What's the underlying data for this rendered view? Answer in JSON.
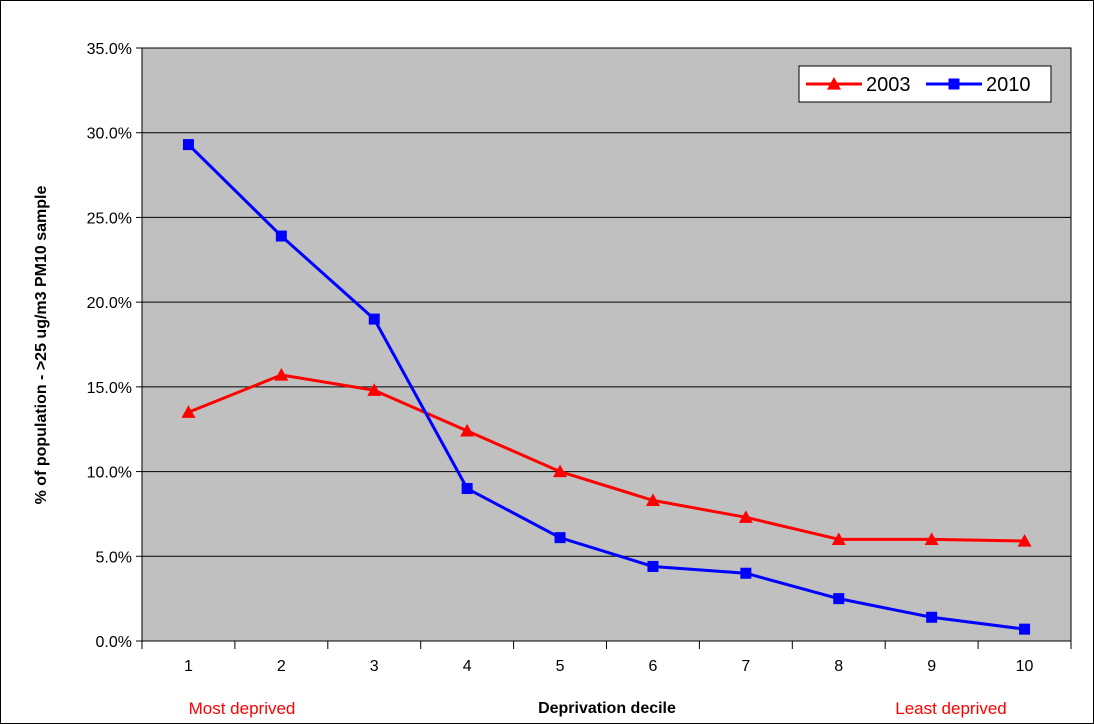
{
  "chart_data": {
    "type": "line",
    "categories": [
      "1",
      "2",
      "3",
      "4",
      "5",
      "6",
      "7",
      "8",
      "9",
      "10"
    ],
    "series": [
      {
        "name": "2003",
        "color": "#ff0000",
        "marker": "triangle",
        "values": [
          13.5,
          15.7,
          14.8,
          12.4,
          10.0,
          8.3,
          7.3,
          6.0,
          6.0,
          5.9
        ]
      },
      {
        "name": "2010",
        "color": "#0000ff",
        "marker": "square",
        "values": [
          29.3,
          23.9,
          19.0,
          9.0,
          6.1,
          4.4,
          4.0,
          2.5,
          1.4,
          0.7
        ]
      }
    ],
    "y_ticks": [
      "0.0%",
      "5.0%",
      "10.0%",
      "15.0%",
      "20.0%",
      "25.0%",
      "30.0%",
      "35.0%"
    ],
    "ylim": [
      0,
      35
    ],
    "xlabel": "Deprivation decile",
    "ylabel": "% of population - >25 ug/m3 PM10 sample",
    "annotations": {
      "left": "Most deprived",
      "right": "Least deprived",
      "color": "#ff0000"
    },
    "legend_position": "top-right",
    "plot_background": "#c0c0c0",
    "grid": true
  }
}
